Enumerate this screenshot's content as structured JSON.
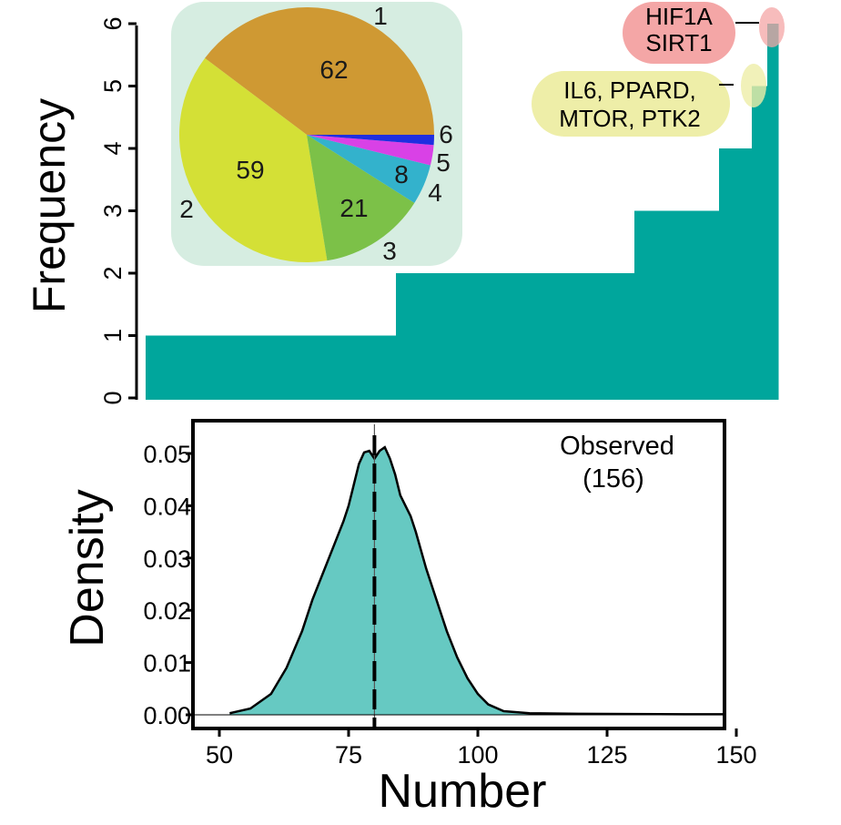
{
  "chart_data": [
    {
      "type": "bar",
      "xlabel": "",
      "ylabel": "Frequency",
      "ylim": [
        0,
        6
      ],
      "yticks": [
        "0",
        "1",
        "2",
        "3",
        "4",
        "5",
        "6"
      ],
      "color": "#00a69c",
      "steps": [
        {
          "frequency": 1,
          "count": 62
        },
        {
          "frequency": 2,
          "count": 59
        },
        {
          "frequency": 3,
          "count": 21
        },
        {
          "frequency": 4,
          "count": 8
        },
        {
          "frequency": 5,
          "count": 4
        },
        {
          "frequency": 6,
          "count": 2
        }
      ],
      "annotations": [
        {
          "lines": [
            "HIF1A",
            "SIRT1"
          ],
          "color": "#f4a6a6",
          "frequency": 6
        },
        {
          "lines": [
            "IL6, PPARD,",
            "MTOR, PTK2"
          ],
          "color": "#eeeea8",
          "frequency": 5
        }
      ]
    },
    {
      "type": "pie",
      "background": "#d6ede1",
      "slices": [
        {
          "label": "1",
          "value": 62,
          "color": "#cf9933"
        },
        {
          "label": "2",
          "value": 59,
          "color": "#d4e036"
        },
        {
          "label": "3",
          "value": 21,
          "color": "#7cc148"
        },
        {
          "label": "4",
          "value": 8,
          "color": "#33b2cc"
        },
        {
          "label": "5",
          "value": 4,
          "color": "#d941e6"
        },
        {
          "label": "6",
          "value": 2,
          "color": "#1f2ee0"
        }
      ],
      "data_labels": [
        "62",
        "59",
        "21",
        "8"
      ]
    },
    {
      "type": "area",
      "title": "",
      "xlabel": "Number",
      "ylabel": "Density",
      "xlim": [
        45,
        162
      ],
      "ylim": [
        0,
        0.052
      ],
      "xticks": [
        "50",
        "75",
        "100",
        "125",
        "150"
      ],
      "yticks": [
        "0.00",
        "0.01",
        "0.02",
        "0.03",
        "0.04",
        "0.05"
      ],
      "fill_color": "#66c9c2",
      "x": [
        52,
        56,
        60,
        63,
        66,
        68,
        70,
        72,
        74,
        75,
        76,
        77,
        78,
        79,
        80,
        81,
        82,
        83,
        84,
        85,
        86,
        87,
        88,
        90,
        92,
        94,
        96,
        98,
        100,
        102,
        105,
        110,
        120,
        140,
        156
      ],
      "y": [
        0.0003,
        0.0012,
        0.004,
        0.009,
        0.016,
        0.022,
        0.027,
        0.032,
        0.037,
        0.04,
        0.044,
        0.048,
        0.0502,
        0.0505,
        0.049,
        0.0505,
        0.0512,
        0.049,
        0.046,
        0.042,
        0.04,
        0.038,
        0.035,
        0.028,
        0.022,
        0.016,
        0.011,
        0.007,
        0.004,
        0.002,
        0.0007,
        0.0003,
        0.0002,
        0.0001,
        0.0001
      ],
      "mean_line": 80,
      "observed": {
        "value": 156,
        "label": "Observed",
        "value_label": "(156)",
        "color": "#e8222b"
      }
    }
  ]
}
